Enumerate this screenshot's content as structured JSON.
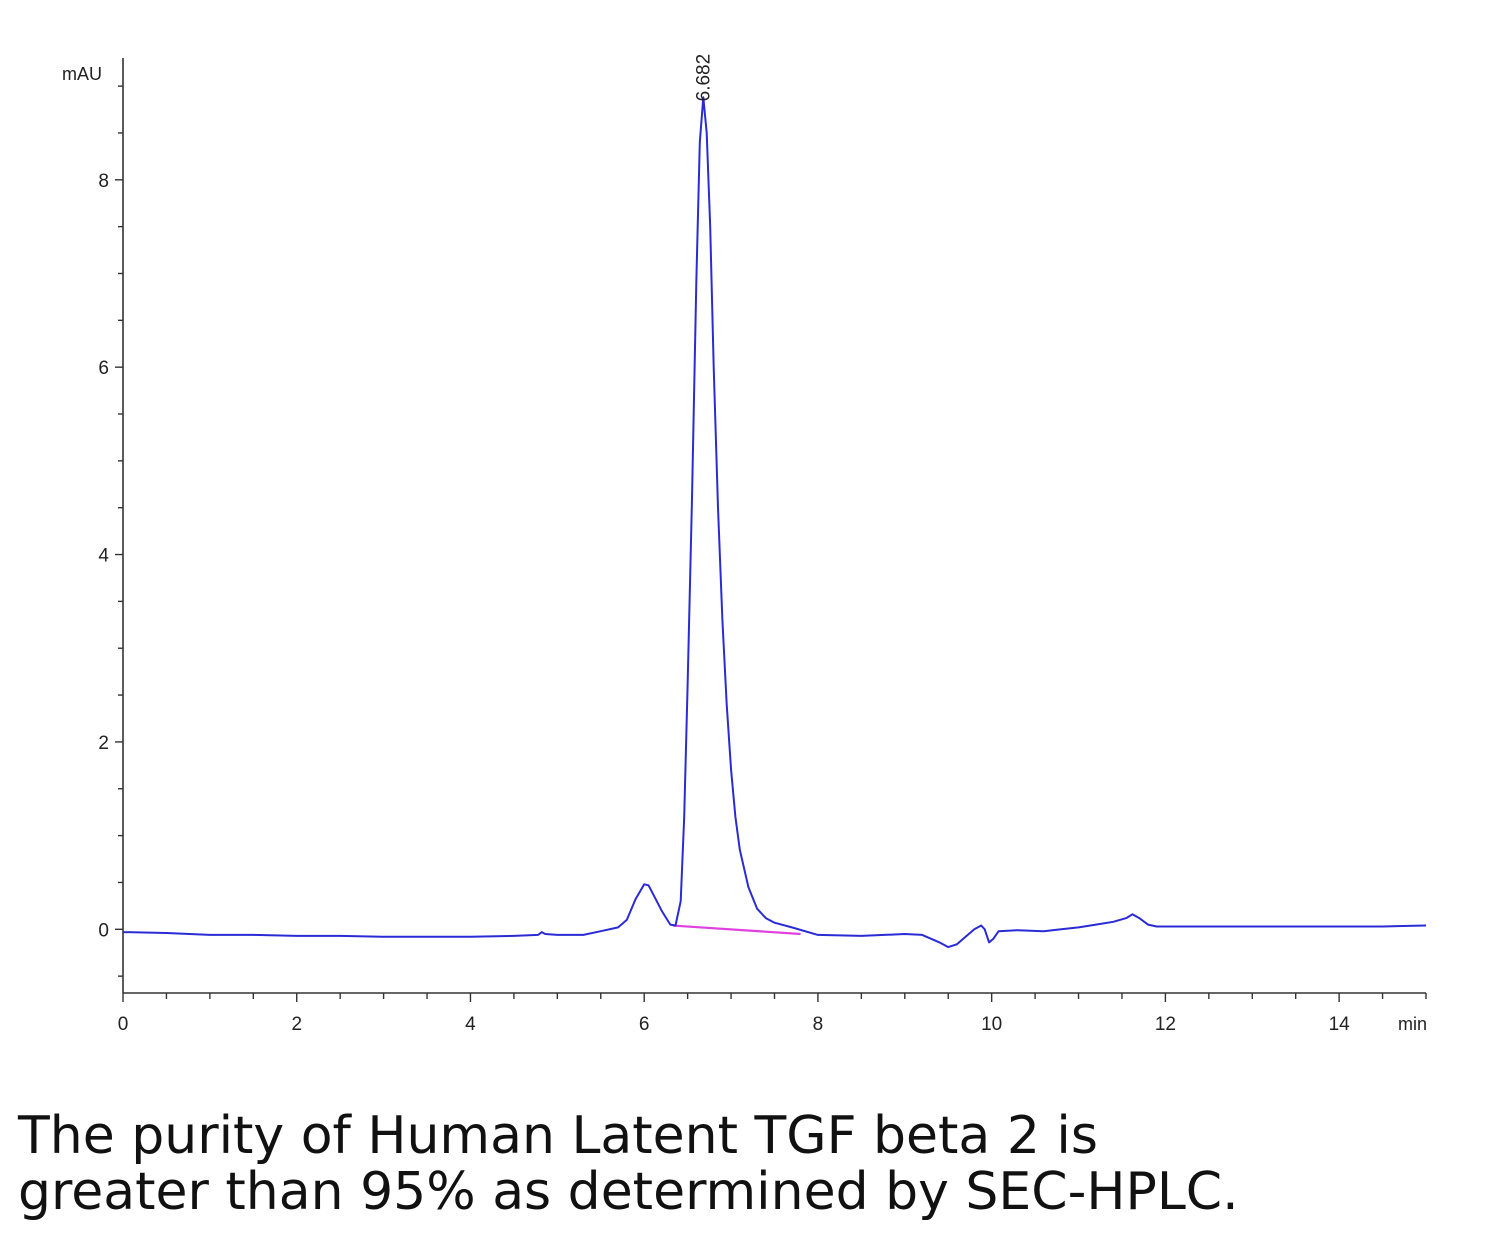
{
  "chart_data": {
    "type": "line",
    "ylabel": "mAU",
    "xlabel": "min",
    "xlim": [
      0,
      15
    ],
    "ylim": [
      -0.68,
      9.3
    ],
    "x_ticks": [
      0,
      2,
      4,
      6,
      8,
      10,
      12,
      14
    ],
    "y_ticks": [
      0,
      2,
      4,
      6,
      8
    ],
    "x_tick_labels": [
      "0",
      "2",
      "4",
      "6",
      "8",
      "10",
      "12",
      "14"
    ],
    "y_tick_labels": [
      "0",
      "2",
      "4",
      "6",
      "8"
    ],
    "grid": false,
    "series": [
      {
        "color": "#2b2bd6",
        "points": [
          [
            0.0,
            -0.03
          ],
          [
            0.5,
            -0.04
          ],
          [
            1.0,
            -0.06
          ],
          [
            1.5,
            -0.06
          ],
          [
            2.0,
            -0.07
          ],
          [
            2.5,
            -0.07
          ],
          [
            3.0,
            -0.08
          ],
          [
            3.5,
            -0.08
          ],
          [
            4.0,
            -0.08
          ],
          [
            4.5,
            -0.07
          ],
          [
            4.78,
            -0.06
          ],
          [
            4.82,
            -0.03
          ],
          [
            4.86,
            -0.05
          ],
          [
            5.0,
            -0.06
          ],
          [
            5.3,
            -0.06
          ],
          [
            5.5,
            -0.02
          ],
          [
            5.7,
            0.02
          ],
          [
            5.8,
            0.1
          ],
          [
            5.9,
            0.32
          ],
          [
            6.0,
            0.48
          ],
          [
            6.05,
            0.47
          ],
          [
            6.1,
            0.38
          ],
          [
            6.2,
            0.2
          ],
          [
            6.3,
            0.05
          ],
          [
            6.36,
            0.04
          ],
          [
            6.42,
            0.3
          ],
          [
            6.46,
            1.2
          ],
          [
            6.5,
            2.6
          ],
          [
            6.55,
            4.6
          ],
          [
            6.6,
            6.9
          ],
          [
            6.64,
            8.4
          ],
          [
            6.68,
            8.88
          ],
          [
            6.72,
            8.5
          ],
          [
            6.76,
            7.5
          ],
          [
            6.8,
            6.0
          ],
          [
            6.85,
            4.5
          ],
          [
            6.9,
            3.3
          ],
          [
            6.95,
            2.4
          ],
          [
            7.0,
            1.7
          ],
          [
            7.05,
            1.2
          ],
          [
            7.1,
            0.85
          ],
          [
            7.2,
            0.45
          ],
          [
            7.3,
            0.22
          ],
          [
            7.4,
            0.12
          ],
          [
            7.5,
            0.07
          ],
          [
            7.7,
            0.02
          ],
          [
            8.0,
            -0.06
          ],
          [
            8.5,
            -0.07
          ],
          [
            9.0,
            -0.05
          ],
          [
            9.2,
            -0.06
          ],
          [
            9.4,
            -0.14
          ],
          [
            9.5,
            -0.19
          ],
          [
            9.6,
            -0.16
          ],
          [
            9.7,
            -0.08
          ],
          [
            9.8,
            0.0
          ],
          [
            9.88,
            0.04
          ],
          [
            9.92,
            0.0
          ],
          [
            9.97,
            -0.14
          ],
          [
            10.02,
            -0.1
          ],
          [
            10.08,
            -0.02
          ],
          [
            10.3,
            -0.01
          ],
          [
            10.6,
            -0.02
          ],
          [
            10.8,
            0.0
          ],
          [
            11.0,
            0.02
          ],
          [
            11.2,
            0.05
          ],
          [
            11.4,
            0.08
          ],
          [
            11.55,
            0.12
          ],
          [
            11.62,
            0.16
          ],
          [
            11.7,
            0.12
          ],
          [
            11.8,
            0.05
          ],
          [
            11.9,
            0.03
          ],
          [
            12.5,
            0.03
          ],
          [
            13.0,
            0.03
          ],
          [
            13.5,
            0.03
          ],
          [
            14.0,
            0.03
          ],
          [
            14.5,
            0.03
          ],
          [
            15.0,
            0.04
          ]
        ]
      }
    ],
    "baseline": {
      "color": "#e040e0",
      "from": [
        6.33,
        0.04
      ],
      "to": [
        7.8,
        -0.05
      ]
    },
    "annotations": [
      {
        "text": "6.682",
        "x": 6.682,
        "y": 8.88
      }
    ]
  },
  "caption": {
    "line1": "The purity of Human Latent TGF beta 2 is",
    "line2": "greater than 95% as determined by SEC-HPLC."
  }
}
